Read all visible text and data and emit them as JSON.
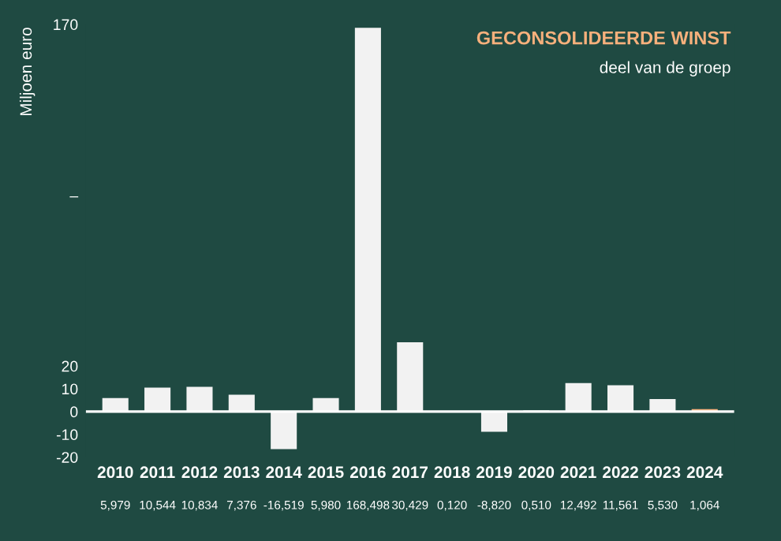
{
  "chart_data": {
    "type": "bar",
    "title": "GECONSOLIDEERDE WINST",
    "subtitle": "deel van de groep",
    "ylabel": "Miljoen euro",
    "categories": [
      "2010",
      "2011",
      "2012",
      "2013",
      "2014",
      "2015",
      "2016",
      "2017",
      "2018",
      "2019",
      "2020",
      "2021",
      "2022",
      "2023",
      "2024"
    ],
    "values": [
      5.979,
      10.544,
      10.834,
      7.376,
      -16.519,
      5.98,
      168.498,
      30.429,
      0.12,
      -8.82,
      0.51,
      12.492,
      11.561,
      5.53,
      1.064
    ],
    "value_labels": [
      "5,979",
      "10,544",
      "10,834",
      "7,376",
      "-16,519",
      "5,980",
      "168,498",
      "30,429",
      "0,120",
      "-8,820",
      "0,510",
      "12,492",
      "11,561",
      "5,530",
      "1,064"
    ],
    "colors": [
      "#f2f2f2",
      "#f2f2f2",
      "#f2f2f2",
      "#f2f2f2",
      "#f2f2f2",
      "#f2f2f2",
      "#f2f2f2",
      "#f2f2f2",
      "#f2f2f2",
      "#f2f2f2",
      "#f2f2f2",
      "#f2f2f2",
      "#f2f2f2",
      "#f2f2f2",
      "#f6b07c"
    ],
    "ylim": [
      -20,
      170
    ],
    "yticks": [
      170,
      {
        "value": 95,
        "label": "–"
      },
      20,
      10,
      0,
      -10,
      -20
    ],
    "ref_lines": [
      {
        "axis": "y",
        "value": 0,
        "color": "#ffffff"
      }
    ],
    "grid": false,
    "legend": false
  }
}
